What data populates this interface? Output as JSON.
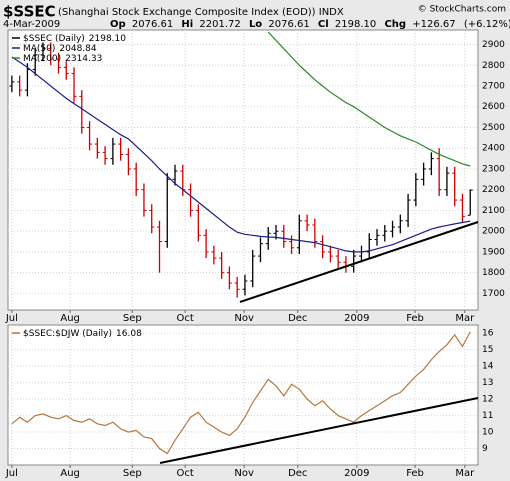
{
  "chart_data": [
    {
      "type": "ohlc",
      "title": "$SSEC",
      "subtitle": "(Shanghai Stock Exchange Composite Index (EOD)) INDX",
      "credit": "© StockCharts.com",
      "date": "4-Mar-2009",
      "quote_labels": [
        "Op",
        "Hi",
        "Lo",
        "Cl",
        "Chg"
      ],
      "change": {
        "value": 126.67,
        "label": "+126.67"
      },
      "change_pct": {
        "value": 6.12,
        "label": "(+6.12%)"
      },
      "up_color": "#000000",
      "down_color": "#cc0000",
      "grid": true,
      "xlim": [
        -0.5,
        60
      ],
      "xticks": [
        {
          "value": 0,
          "label": "Jul"
        },
        {
          "value": 7.5,
          "label": "Aug"
        },
        {
          "value": 15.5,
          "label": "Sep"
        },
        {
          "value": 22.3,
          "label": "Oct"
        },
        {
          "value": 29.9,
          "label": "Nov"
        },
        {
          "value": 36.8,
          "label": "Dec"
        },
        {
          "value": 44.4,
          "label": "2009"
        },
        {
          "value": 51.9,
          "label": "Feb"
        },
        {
          "value": 58.3,
          "label": "Mar"
        }
      ],
      "ylim": [
        1620,
        2970
      ],
      "yticks": [
        1700,
        1800,
        1900,
        2000,
        2100,
        2200,
        2300,
        2400,
        2500,
        2600,
        2700,
        2800,
        2900
      ],
      "series": [
        {
          "name": "$SSEC (Daily)",
          "legend_value": {
            "value": 2198.1,
            "label": "2198.10"
          },
          "open": [
            2700,
            2720,
            2680,
            2780,
            2850,
            2880,
            2830,
            2790,
            2760,
            2650,
            2500,
            2420,
            2380,
            2350,
            2420,
            2370,
            2300,
            2200,
            2100,
            2020,
            1950,
            2250,
            2290,
            2200,
            2100,
            1980,
            1900,
            1870,
            1800,
            1750,
            1720,
            1760,
            1880,
            1940,
            1990,
            2000,
            1950,
            1920,
            2050,
            2030,
            1950,
            1900,
            1880,
            1850,
            1830,
            1880,
            1900,
            1960,
            1980,
            2000,
            2020,
            2050,
            2150,
            2250,
            2300,
            2350,
            2200,
            2280,
            2150,
            2076.61
          ],
          "high": [
            2750,
            2750,
            2810,
            2880,
            2910,
            2910,
            2860,
            2820,
            2790,
            2680,
            2530,
            2450,
            2410,
            2450,
            2450,
            2400,
            2330,
            2230,
            2130,
            2050,
            2280,
            2320,
            2320,
            2230,
            2130,
            2010,
            1930,
            1900,
            1830,
            1780,
            1790,
            1910,
            1970,
            2020,
            2030,
            2030,
            1980,
            2080,
            2080,
            2060,
            1980,
            1930,
            1910,
            1880,
            1910,
            1930,
            1990,
            2010,
            2030,
            2050,
            2080,
            2180,
            2280,
            2330,
            2380,
            2400,
            2310,
            2310,
            2180,
            2201.72
          ],
          "low": [
            2670,
            2650,
            2650,
            2750,
            2820,
            2800,
            2760,
            2730,
            2620,
            2470,
            2390,
            2350,
            2320,
            2320,
            2340,
            2270,
            2170,
            2070,
            1990,
            1800,
            1920,
            2220,
            2170,
            2070,
            1950,
            1870,
            1840,
            1770,
            1720,
            1680,
            1690,
            1730,
            1850,
            1910,
            1960,
            1920,
            1890,
            1890,
            2000,
            1920,
            1870,
            1850,
            1820,
            1800,
            1800,
            1850,
            1870,
            1930,
            1950,
            1970,
            1990,
            2020,
            2120,
            2220,
            2270,
            2170,
            2170,
            2120,
            2040,
            2076.61
          ],
          "close": [
            2720,
            2680,
            2780,
            2850,
            2880,
            2830,
            2790,
            2760,
            2650,
            2500,
            2420,
            2380,
            2350,
            2420,
            2370,
            2300,
            2200,
            2100,
            2020,
            1950,
            2250,
            2290,
            2200,
            2100,
            1980,
            1900,
            1870,
            1800,
            1750,
            1720,
            1760,
            1880,
            1940,
            1990,
            2000,
            1950,
            1920,
            2050,
            2030,
            1950,
            1900,
            1880,
            1850,
            1830,
            1880,
            1900,
            1960,
            1980,
            2000,
            2020,
            2050,
            2150,
            2250,
            2300,
            2350,
            2200,
            2280,
            2150,
            2071.43,
            2198.1
          ]
        },
        {
          "name": "MA(50)",
          "color": "#1c1c8c",
          "legend_value": 2048.84,
          "values": [
            2840,
            2815,
            2790,
            2760,
            2730,
            2700,
            2670,
            2640,
            2615,
            2590,
            2565,
            2540,
            2515,
            2490,
            2465,
            2445,
            2410,
            2375,
            2340,
            2300,
            2265,
            2230,
            2200,
            2170,
            2140,
            2110,
            2080,
            2050,
            2020,
            1995,
            1985,
            1980,
            1975,
            1972,
            1970,
            1965,
            1960,
            1955,
            1950,
            1945,
            1935,
            1925,
            1915,
            1905,
            1900,
            1900,
            1905,
            1915,
            1925,
            1935,
            1950,
            1965,
            1980,
            1995,
            2010,
            2020,
            2028,
            2035,
            2042,
            2048.84
          ]
        },
        {
          "name": "MA(200)",
          "color": "#2a8a2a",
          "legend_value": 2314.33,
          "values": [
            null,
            null,
            null,
            null,
            null,
            null,
            null,
            null,
            null,
            null,
            null,
            null,
            null,
            null,
            null,
            null,
            null,
            null,
            null,
            null,
            null,
            null,
            null,
            null,
            null,
            null,
            null,
            null,
            null,
            null,
            null,
            null,
            null,
            2960,
            2920,
            2880,
            2840,
            2800,
            2765,
            2730,
            2700,
            2670,
            2645,
            2620,
            2600,
            2575,
            2550,
            2525,
            2500,
            2480,
            2460,
            2445,
            2430,
            2410,
            2390,
            2370,
            2355,
            2340,
            2325,
            2314.33
          ]
        }
      ]
    },
    {
      "type": "line",
      "grid": true,
      "xlim": [
        -0.5,
        60
      ],
      "xticks": [
        {
          "value": 0,
          "label": "Jul"
        },
        {
          "value": 7.5,
          "label": "Aug"
        },
        {
          "value": 15.5,
          "label": "Sep"
        },
        {
          "value": 22.3,
          "label": "Oct"
        },
        {
          "value": 29.9,
          "label": "Nov"
        },
        {
          "value": 36.8,
          "label": "Dec"
        },
        {
          "value": 44.4,
          "label": "2009"
        },
        {
          "value": 51.9,
          "label": "Feb"
        },
        {
          "value": 58.3,
          "label": "Mar"
        }
      ],
      "ylim": [
        8,
        16.5
      ],
      "yticks": [
        9,
        10,
        11,
        12,
        13,
        14,
        15,
        16
      ],
      "series": [
        {
          "name": "$SSEC:$DJW (Daily)",
          "color": "#b5773f",
          "legend_value": 16.08,
          "values": [
            10.5,
            10.9,
            10.6,
            11.0,
            11.1,
            10.9,
            10.8,
            11.0,
            10.7,
            10.6,
            10.8,
            10.5,
            10.4,
            10.6,
            10.2,
            10.0,
            10.1,
            9.7,
            9.6,
            9.0,
            8.7,
            9.5,
            10.2,
            10.9,
            11.2,
            10.6,
            10.3,
            10.0,
            9.8,
            10.2,
            10.9,
            11.8,
            12.5,
            13.2,
            12.8,
            12.2,
            12.9,
            12.6,
            12.0,
            11.6,
            11.9,
            11.4,
            11.0,
            10.8,
            10.6,
            11.0,
            11.3,
            11.6,
            11.9,
            12.2,
            12.4,
            12.9,
            13.4,
            13.8,
            14.4,
            14.9,
            15.3,
            15.9,
            15.2,
            16.08
          ]
        }
      ]
    }
  ]
}
